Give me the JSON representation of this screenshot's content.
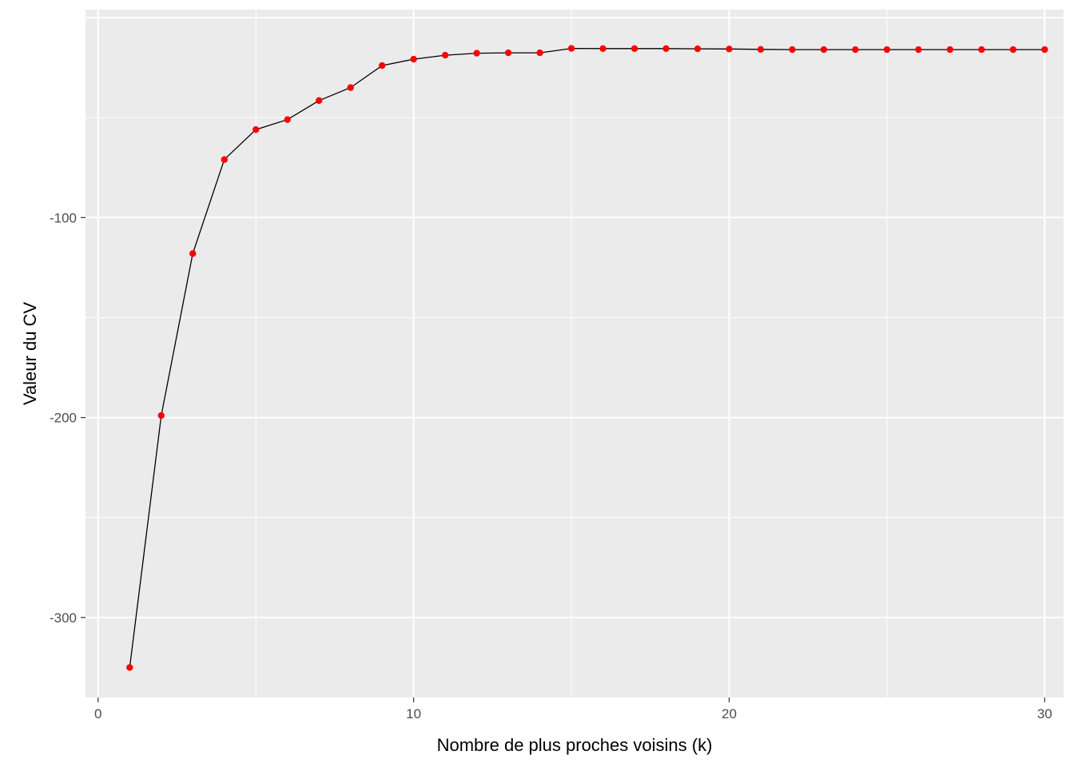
{
  "chart_data": {
    "type": "line",
    "title": "",
    "xlabel": "Nombre de plus proches voisins (k)",
    "ylabel": "Valeur du CV",
    "xlim": [
      -0.4,
      30.6
    ],
    "ylim": [
      -340,
      4
    ],
    "x_ticks": [
      0,
      10,
      20,
      30
    ],
    "y_ticks": [
      -100,
      -200,
      -300
    ],
    "x_tick_labels": [
      "0",
      "10",
      "20",
      "30"
    ],
    "y_tick_labels": [
      "-100",
      "-200",
      "-300"
    ],
    "grid": true,
    "legend": "none",
    "series": [
      {
        "line_color": "#000000",
        "point_color": "#ff0000",
        "x": [
          1,
          2,
          3,
          4,
          5,
          6,
          7,
          8,
          9,
          10,
          11,
          12,
          13,
          14,
          15,
          16,
          17,
          18,
          19,
          20,
          21,
          22,
          23,
          24,
          25,
          26,
          27,
          28,
          29,
          30
        ],
        "y": [
          -325,
          -199,
          -118,
          -71,
          -56,
          -51,
          -41.5,
          -35,
          -24,
          -20.8,
          -18.8,
          -17.8,
          -17.6,
          -17.6,
          -15.4,
          -15.5,
          -15.5,
          -15.5,
          -15.6,
          -15.7,
          -15.9,
          -16,
          -16,
          -16,
          -16,
          -16,
          -16,
          -16,
          -16,
          -16
        ]
      }
    ]
  }
}
